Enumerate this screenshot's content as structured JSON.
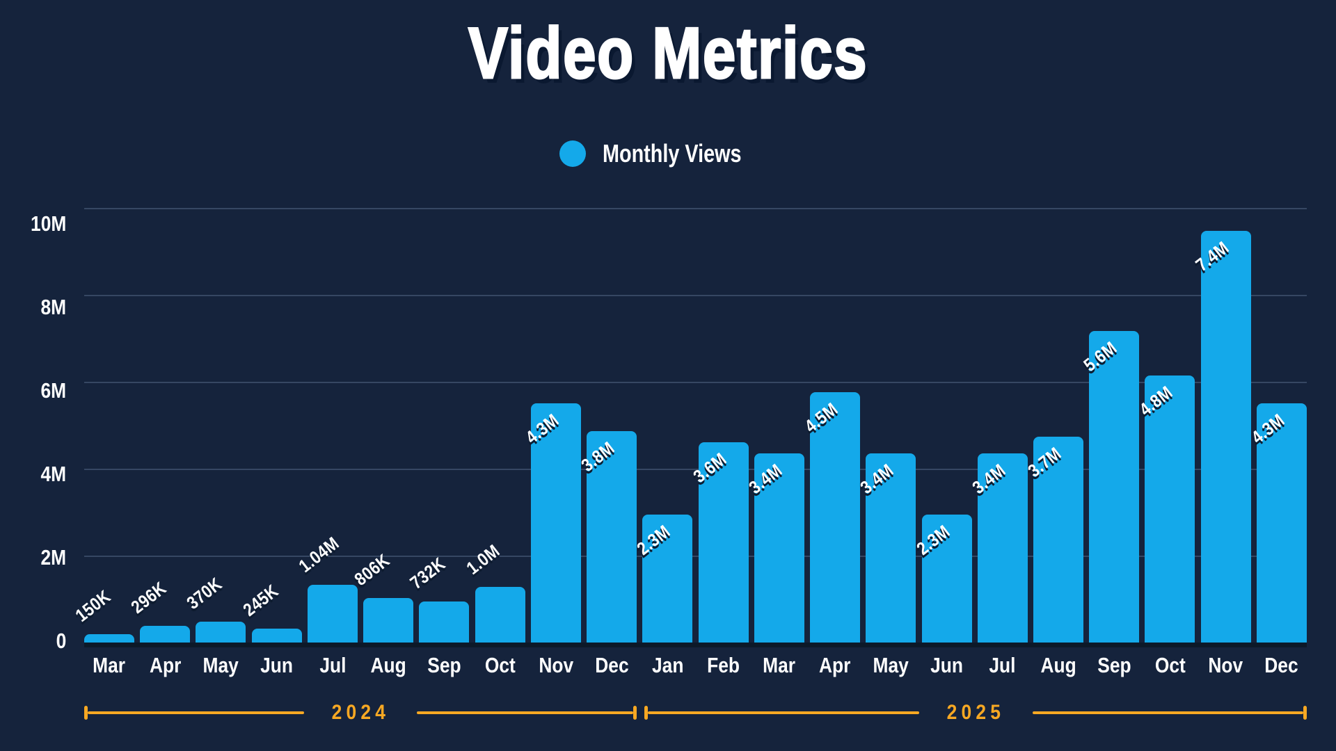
{
  "title": "Video Metrics",
  "legend": {
    "series_label": "Monthly Views"
  },
  "y_axis": {
    "tick_labels": [
      "10M",
      "8M",
      "6M",
      "4M",
      "2M",
      "0"
    ]
  },
  "chart_data": {
    "type": "bar",
    "title": "Video Metrics",
    "series_name": "Monthly Views",
    "categories": [
      "Mar 2024",
      "Apr 2024",
      "May 2024",
      "Jun 2024",
      "Jul 2024",
      "Aug 2024",
      "Sep 2024",
      "Oct 2024",
      "Nov 2024",
      "Dec 2024",
      "Jan 2025",
      "Feb 2025",
      "Mar 2025",
      "Apr 2025",
      "May 2025",
      "Jun 2025",
      "Jul 2025",
      "Aug 2025",
      "Sep 2025",
      "Oct 2025",
      "Nov 2025",
      "Dec 2025"
    ],
    "month_labels": [
      "Mar",
      "Apr",
      "May",
      "Jun",
      "Jul",
      "Aug",
      "Sep",
      "Oct",
      "Nov",
      "Dec",
      "Jan",
      "Feb",
      "Mar",
      "Apr",
      "May",
      "Jun",
      "Jul",
      "Aug",
      "Sep",
      "Oct",
      "Nov",
      "Dec"
    ],
    "values_millions": [
      0.15,
      0.296,
      0.37,
      0.245,
      1.04,
      0.806,
      0.732,
      1.0,
      4.3,
      3.8,
      2.3,
      3.6,
      3.4,
      4.5,
      3.4,
      2.3,
      3.4,
      3.7,
      5.6,
      4.8,
      7.4,
      4.3
    ],
    "bar_value_labels": [
      "150K",
      "296K",
      "370K",
      "245K",
      "1.04M",
      "806K",
      "732K",
      "1.0M",
      "4.3M",
      "3.8M",
      "2.3M",
      "3.6M",
      "3.4M",
      "4.5M",
      "3.4M",
      "2.3M",
      "3.4M",
      "3.7M",
      "5.6M",
      "4.8M",
      "7.4M",
      "4.3M"
    ],
    "ylim": [
      0,
      10
    ],
    "y_tick_step": 2,
    "grid": "horizontal",
    "legend_position": "top",
    "bar_display_scale": 1.28,
    "year_groups": [
      {
        "label": "2024",
        "start_index": 0,
        "end_index": 9
      },
      {
        "label": "2025",
        "start_index": 10,
        "end_index": 21
      }
    ]
  },
  "colors": {
    "background": "#15233C",
    "bar": "#14A9EA",
    "gridline": "rgba(125,150,185,0.32)",
    "baseline": "#0C1929",
    "accent_orange": "#F7A823",
    "text": "#FFFFFF",
    "shadow": "#0D1B2F"
  }
}
